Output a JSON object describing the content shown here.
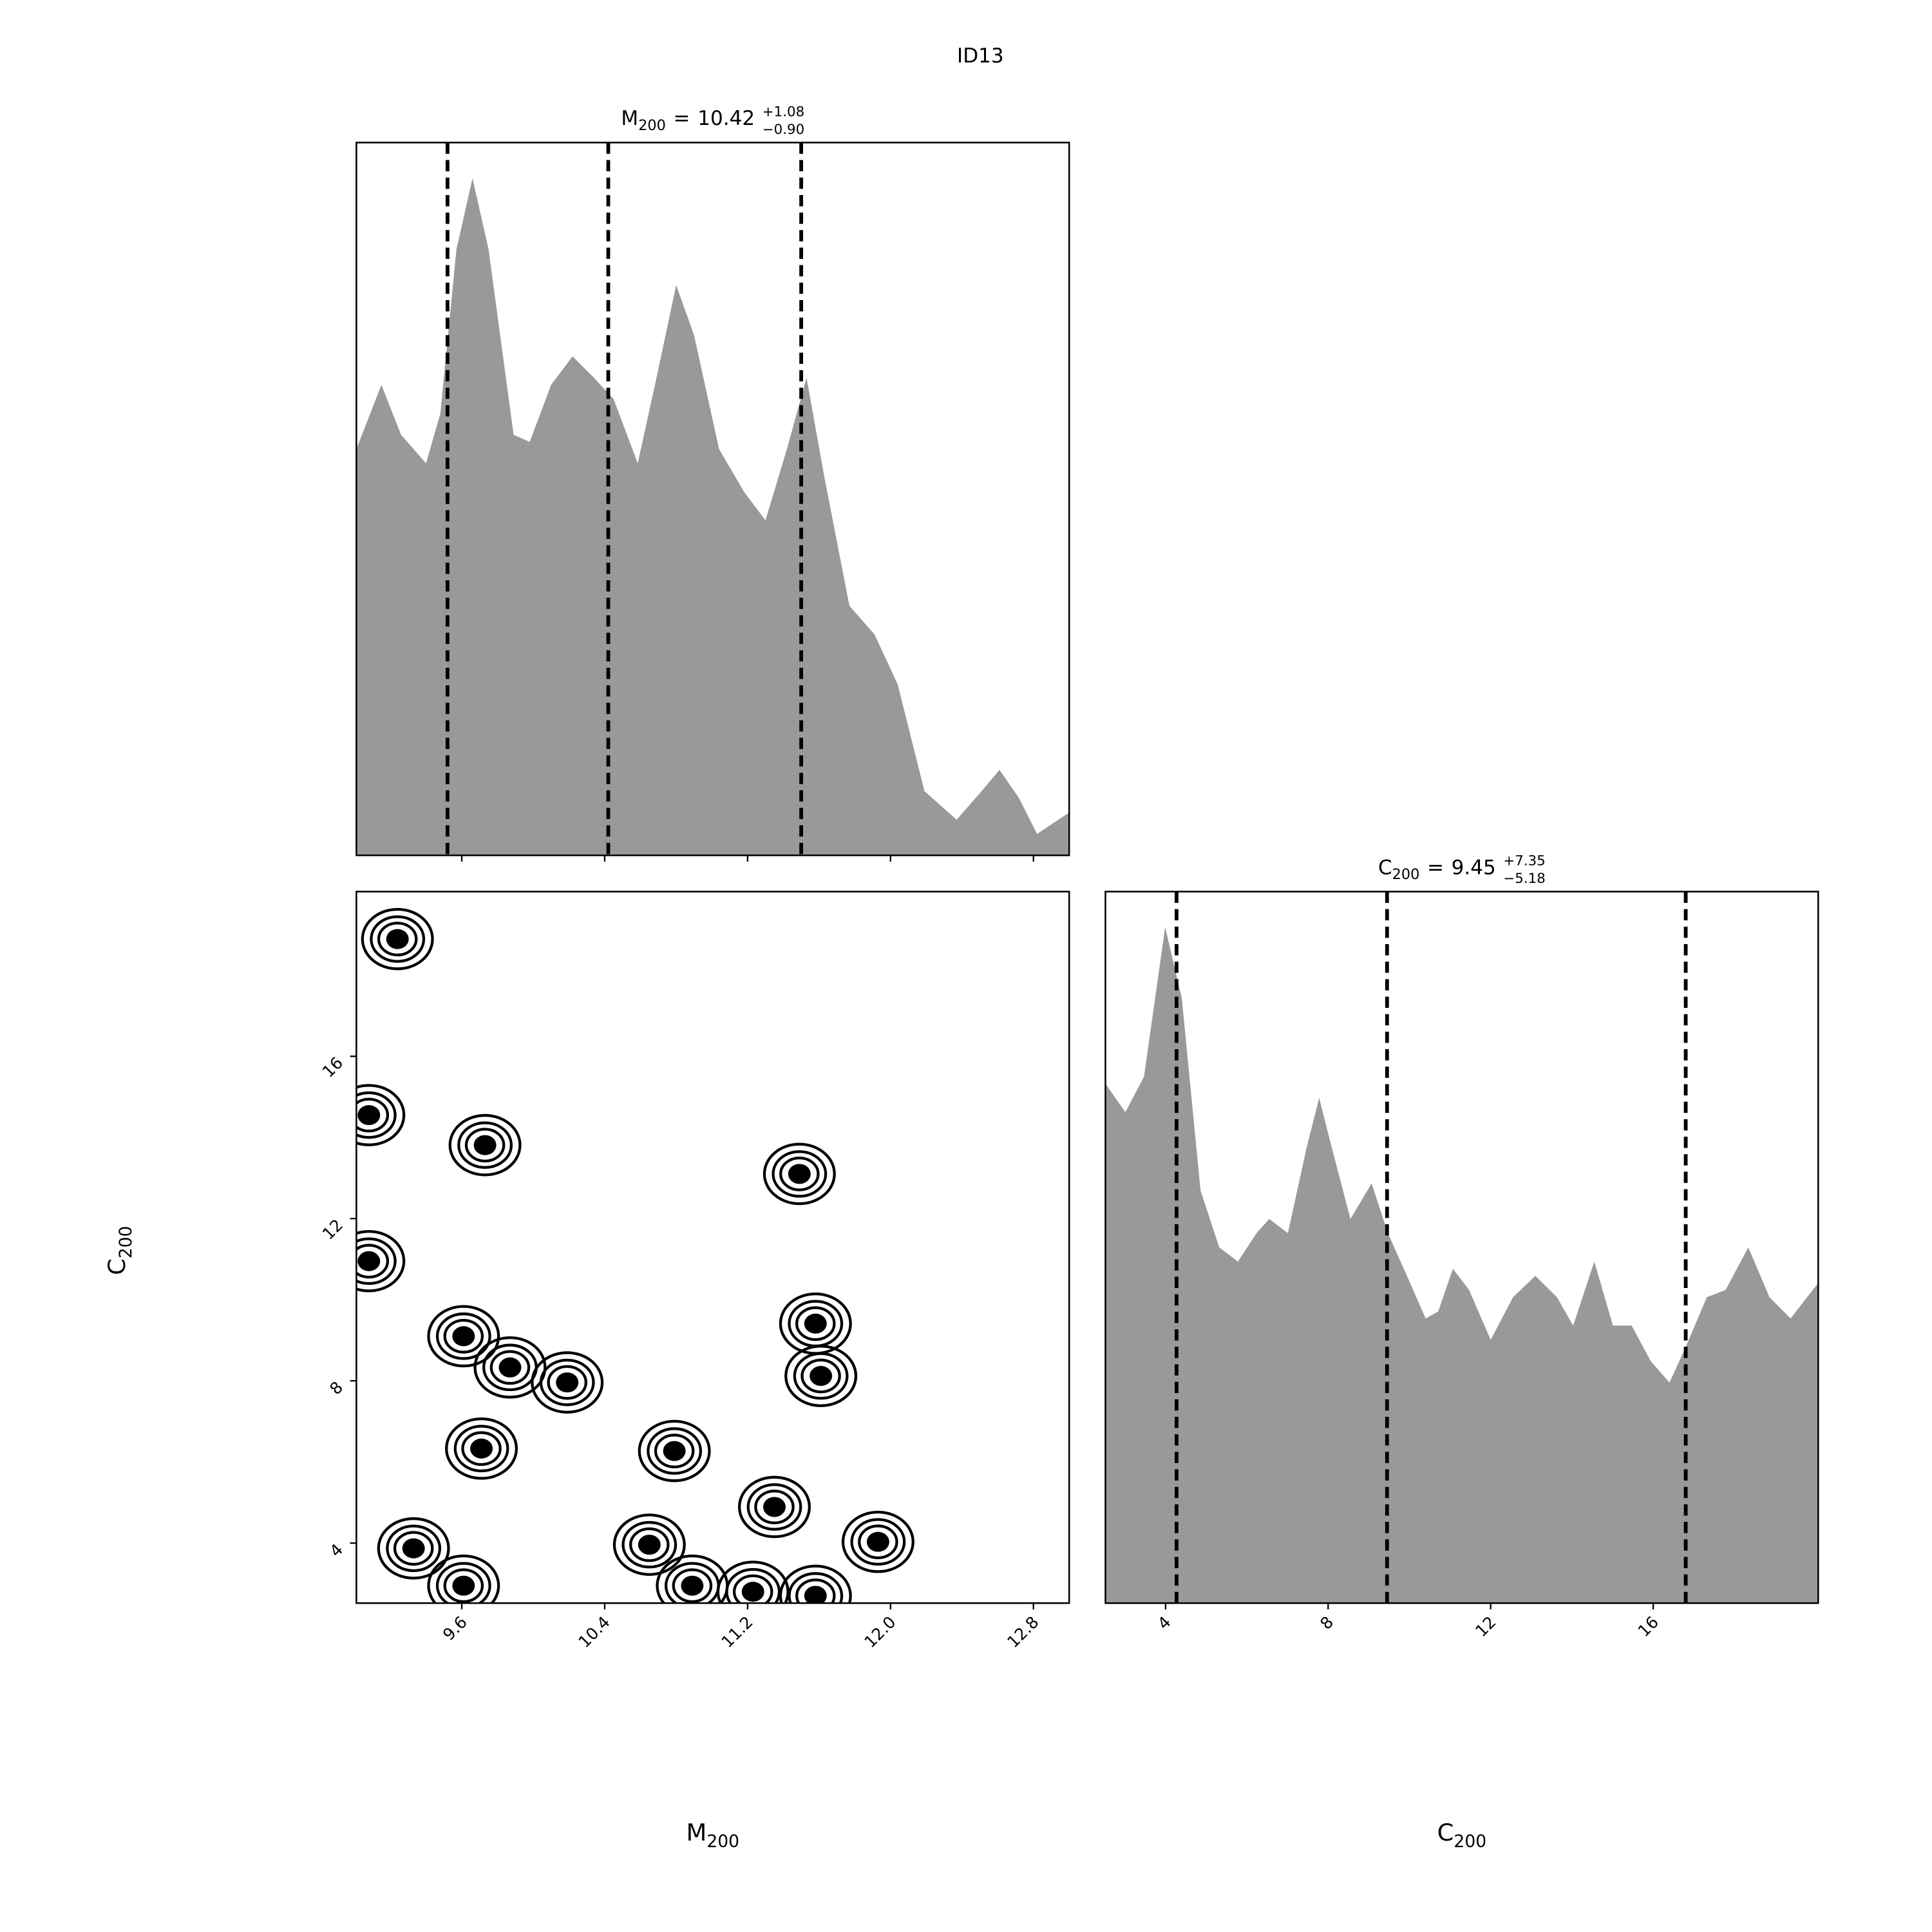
{
  "title": "ID13",
  "chart_data": [
    {
      "type": "area",
      "color": "#999999",
      "title": {
        "name": "M",
        "subscript": "200",
        "relation": "=",
        "value": "10.42",
        "upper": "+1.08",
        "lower": "−0.90"
      },
      "x": [
        9.01,
        9.15,
        9.26,
        9.4,
        9.48,
        9.57,
        9.66,
        9.75,
        9.89,
        9.98,
        10.1,
        10.22,
        10.34,
        10.45,
        10.585,
        10.69,
        10.8,
        10.9,
        11.04,
        11.18,
        11.3,
        11.42,
        11.53,
        11.63,
        11.77,
        11.91,
        12.04,
        12.19,
        12.37,
        12.51,
        12.61,
        12.72,
        12.82,
        13.0
      ],
      "values": [
        0.57,
        0.66,
        0.59,
        0.55,
        0.62,
        0.85,
        0.95,
        0.85,
        0.59,
        0.58,
        0.66,
        0.7,
        0.67,
        0.64,
        0.55,
        0.67,
        0.8,
        0.73,
        0.57,
        0.51,
        0.47,
        0.57,
        0.67,
        0.53,
        0.35,
        0.31,
        0.24,
        0.09,
        0.05,
        0.09,
        0.12,
        0.08,
        0.03,
        0.06
      ],
      "xlim": [
        9.01,
        13.0
      ],
      "ylim": [
        0,
        1
      ],
      "xticks": [
        9.6,
        10.4,
        11.2,
        12,
        12.8
      ],
      "quantiles": [
        9.52,
        10.42,
        11.5
      ]
    },
    {
      "type": "contour",
      "xlabel": {
        "name": "M",
        "subscript": "200"
      },
      "ylabel": {
        "name": "C",
        "subscript": "200"
      },
      "xlim": [
        9.01,
        13.0
      ],
      "ylim": [
        2.52,
        20.06
      ],
      "xticks": [
        9.6,
        10.4,
        11.2,
        {
          "value": 12,
          "label": "12.0"
        },
        12.8
      ],
      "yticks": [
        4,
        8,
        12,
        16
      ],
      "peaks": {
        "x": [
          9.24,
          9.08,
          9.73,
          9.08,
          9.61,
          9.87,
          10.19,
          9.71,
          9.33,
          9.61,
          10.65,
          10.79,
          10.89,
          11.35,
          11.58,
          11.61,
          11.49,
          11.93,
          11.58,
          11.23
        ],
        "y": [
          18.89,
          14.55,
          13.81,
          10.95,
          9.1,
          8.33,
          7.96,
          6.33,
          3.87,
          2.95,
          3.96,
          6.27,
          2.95,
          4.89,
          9.41,
          8.12,
          13.1,
          4.03,
          2.7,
          2.8
        ]
      }
    },
    {
      "type": "area",
      "color": "#999999",
      "title": {
        "name": "C",
        "subscript": "200",
        "relation": "=",
        "value": "9.45",
        "upper": "+7.35",
        "lower": "−5.18"
      },
      "xlabel": {
        "name": "C",
        "subscript": "200"
      },
      "x": [
        2.52,
        3.01,
        3.47,
        3.99,
        4.4,
        4.86,
        5.32,
        5.78,
        6.24,
        6.55,
        7.01,
        7.47,
        7.78,
        8.09,
        8.55,
        9.07,
        9.47,
        9.94,
        10.4,
        10.71,
        11.07,
        11.47,
        12.0,
        12.55,
        13.1,
        13.63,
        14.03,
        14.55,
        15.01,
        15.47,
        15.94,
        16.4,
        16.8,
        17.32,
        17.78,
        18.34,
        18.86,
        19.38,
        20.06
      ],
      "values": [
        0.73,
        0.69,
        0.74,
        0.95,
        0.85,
        0.58,
        0.5,
        0.48,
        0.52,
        0.54,
        0.52,
        0.64,
        0.71,
        0.64,
        0.54,
        0.59,
        0.52,
        0.46,
        0.4,
        0.41,
        0.47,
        0.44,
        0.37,
        0.43,
        0.46,
        0.43,
        0.39,
        0.48,
        0.39,
        0.39,
        0.34,
        0.31,
        0.36,
        0.43,
        0.44,
        0.5,
        0.43,
        0.4,
        0.45
      ],
      "xlim": [
        2.52,
        20.06
      ],
      "ylim": [
        0,
        1
      ],
      "xticks": [
        4,
        8,
        12,
        16
      ],
      "quantiles": [
        4.27,
        9.45,
        16.8
      ]
    }
  ]
}
